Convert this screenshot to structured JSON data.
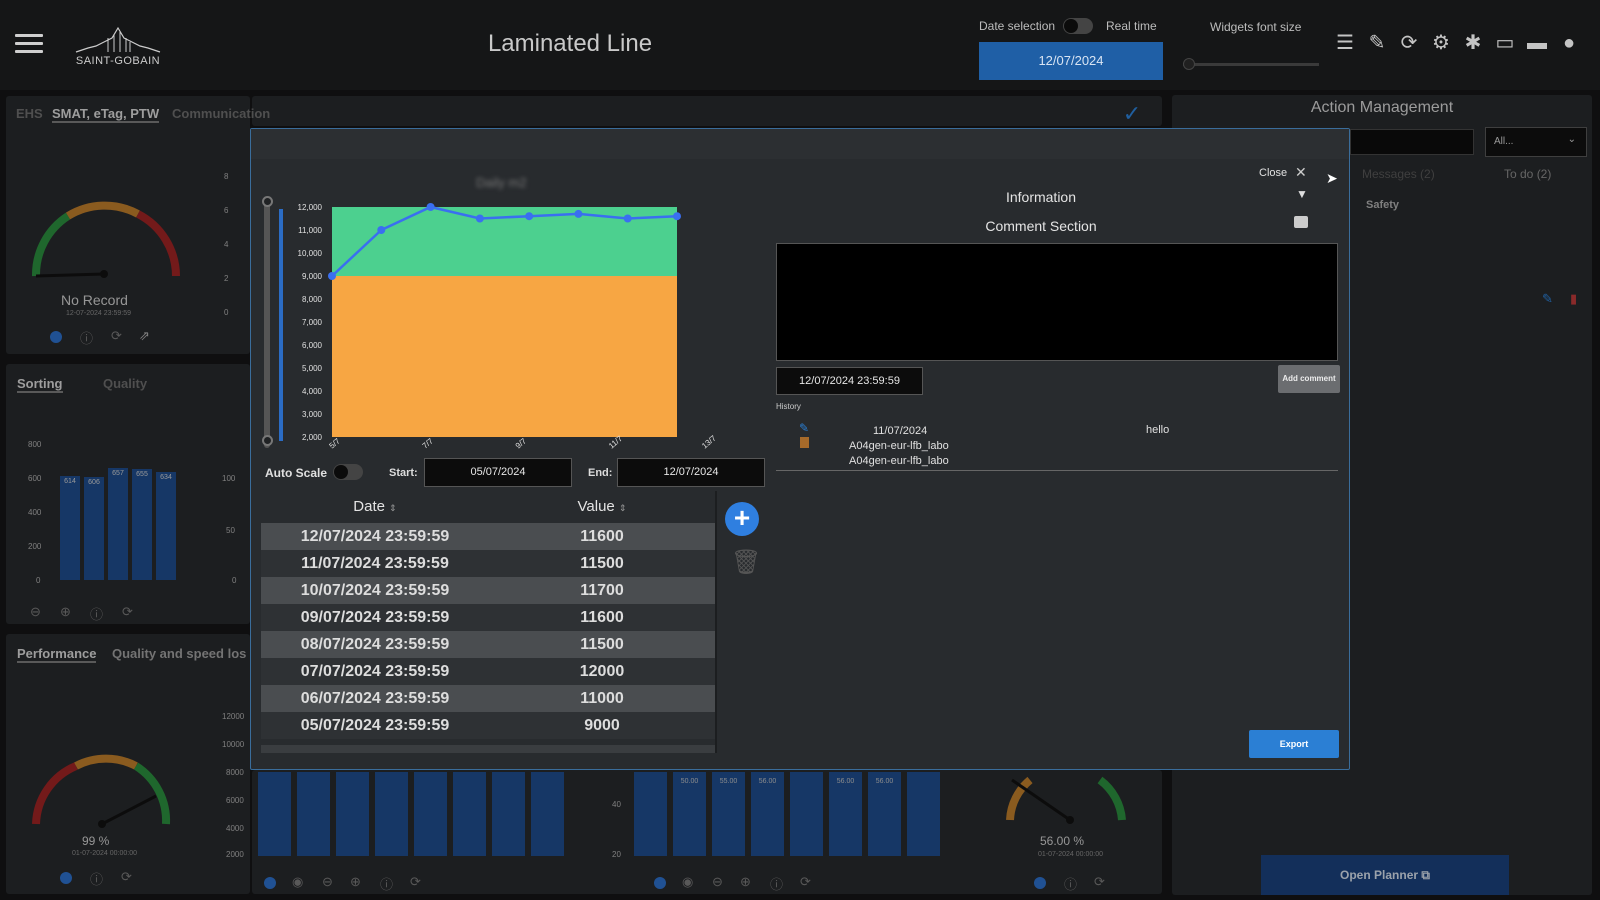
{
  "app": {
    "title": "Laminated Line",
    "logo_text": "SAINT-GOBAIN"
  },
  "header": {
    "date_selection_label": "Date selection",
    "real_time_label": "Real time",
    "date_value": "12/07/2024",
    "widgets_font_size_label": "Widgets font size",
    "icons": [
      "layers-icon",
      "pencil-icon",
      "refresh-icon",
      "gear-icon",
      "bug-icon",
      "window-icon",
      "folder-icon",
      "user-icon"
    ]
  },
  "left": {
    "tabs1": [
      "EHS",
      "SMAT, eTag, PTW",
      "Communication"
    ],
    "gauge1": {
      "status": "No Record",
      "timestamp": "12-07-2024 23:59:59",
      "ticks": [
        "0",
        "20",
        "40",
        "60",
        "80",
        "100"
      ]
    },
    "mini_y1": [
      "8",
      "6",
      "4",
      "2",
      "0"
    ],
    "tabs2": [
      "Sorting",
      "Quality"
    ],
    "bars2": {
      "labels": [
        "614",
        "606",
        "657",
        "655",
        "634"
      ],
      "yaxis": [
        "800",
        "600",
        "400",
        "200",
        "0"
      ],
      "y2": [
        "100",
        "50",
        "0"
      ],
      "values": [
        614,
        606,
        657,
        655,
        634
      ],
      "max": 800
    },
    "tabs3": [
      "Performance",
      "Quality and speed los"
    ],
    "gauge3": {
      "value": "99 %",
      "timestamp": "01-07-2024 00:00:00",
      "ticks": [
        "96.0",
        "96.5",
        "97.0",
        "97.5",
        "98.0",
        "98.5",
        "99.0",
        "99.5",
        "100.0"
      ]
    },
    "yaxis3": [
      "12000",
      "10000",
      "8000",
      "6000",
      "4000",
      "2000"
    ]
  },
  "bottom": {
    "bars_mid_labels": [
      "50.00",
      "55.00",
      "56.00",
      "56.00",
      "56.00"
    ],
    "gauge_right": {
      "value": "56.00 %",
      "timestamp": "01-07-2024 00:00:00",
      "ticks": [
        "50",
        "55",
        "75",
        "80"
      ]
    },
    "axis40": "40",
    "axis20": "20"
  },
  "modal": {
    "close_label": "Close",
    "information_label": "Information",
    "comment_section_label": "Comment Section",
    "comment_date": "12/07/2024 23:59:59",
    "add_comment_label": "Add comment",
    "history_label": "History",
    "history": [
      {
        "date": "11/07/2024",
        "user1": "A04gen-eur-lfb_labo",
        "user2": "A04gen-eur-lfb_labo",
        "comment": "hello"
      }
    ],
    "auto_scale_label": "Auto Scale",
    "start_label": "Start:",
    "start_value": "05/07/2024",
    "end_label": "End:",
    "end_value": "12/07/2024",
    "table_headers": {
      "date": "Date",
      "value": "Value"
    },
    "rows": [
      {
        "date": "12/07/2024 23:59:59",
        "value": "11600"
      },
      {
        "date": "11/07/2024 23:59:59",
        "value": "11500"
      },
      {
        "date": "10/07/2024 23:59:59",
        "value": "11700"
      },
      {
        "date": "09/07/2024 23:59:59",
        "value": "11600"
      },
      {
        "date": "08/07/2024 23:59:59",
        "value": "11500"
      },
      {
        "date": "07/07/2024 23:59:59",
        "value": "12000"
      },
      {
        "date": "06/07/2024 23:59:59",
        "value": "11000"
      },
      {
        "date": "05/07/2024 23:59:59",
        "value": "9000"
      }
    ],
    "export_label": "Export",
    "colors": {
      "green_area": "#4cd08f",
      "orange_area": "#f7a643",
      "line": "#3a6ff0"
    }
  },
  "chart_data": {
    "type": "area",
    "categories": [
      "5/7",
      "6/7",
      "7/7",
      "8/7",
      "9/7",
      "10/7",
      "11/7",
      "12/7"
    ],
    "values": [
      9000,
      11000,
      12000,
      11500,
      11600,
      11700,
      11500,
      11600
    ],
    "xtick_labels": [
      "5/7",
      "7/7",
      "9/7",
      "11/7",
      "13/7"
    ],
    "ytick_labels": [
      "12,000",
      "11,000",
      "10,000",
      "9,000",
      "8,000",
      "7,000",
      "6,000",
      "5,000",
      "4,000",
      "3,000",
      "2,000"
    ],
    "ylim": [
      2000,
      12000
    ],
    "threshold": 9000,
    "grid": false
  },
  "action_management": {
    "title": "Action Management",
    "filter_value": "All...",
    "tabs": [
      "Messages (2)",
      "To do (2)"
    ],
    "item_label": "Safety",
    "open_planner_label": "Open Planner"
  }
}
